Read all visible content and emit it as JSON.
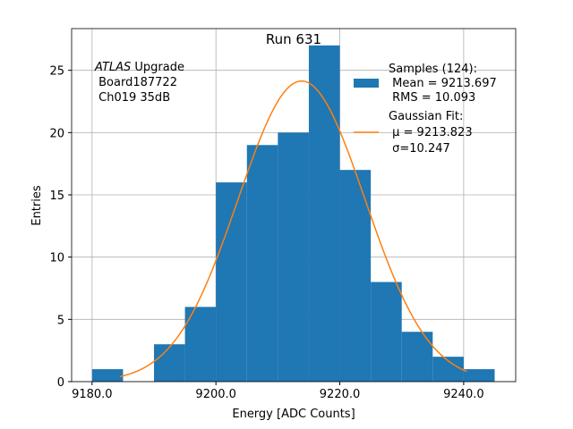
{
  "chart_data": {
    "type": "bar",
    "title": "Run 631",
    "xlabel": "Energy [ADC Counts]",
    "ylabel": "Entries",
    "xlim": [
      9176.7,
      9248.4
    ],
    "ylim": [
      0,
      28.35
    ],
    "grid": true,
    "legend_placement": "top-right",
    "bin_edges": [
      9180,
      9185,
      9190,
      9195,
      9200,
      9205,
      9210,
      9215,
      9220,
      9225,
      9230,
      9235,
      9240,
      9245
    ],
    "values": [
      1,
      0,
      3,
      6,
      16,
      19,
      20,
      27,
      17,
      8,
      4,
      2,
      1
    ],
    "xticks": [
      9180,
      9200,
      9220,
      9240
    ],
    "xtick_labels": [
      "9180.0",
      "9200.0",
      "9220.0",
      "9240.0"
    ],
    "yticks": [
      0,
      5,
      10,
      15,
      20,
      25
    ],
    "ytick_labels": [
      "0",
      "5",
      "10",
      "15",
      "20",
      "25"
    ],
    "fit": {
      "type": "gaussian",
      "mu": 9213.823,
      "sigma": 10.247,
      "entries": 124,
      "bin_width": 5,
      "x_range": [
        9184.5,
        9240.5
      ]
    },
    "colors": {
      "bars": "#1f77b4",
      "fit": "#ff7f0e"
    },
    "annotation": {
      "italic": "ATLAS",
      "line1_rest": " Upgrade",
      "line2": " Board187722",
      "line3": " Ch019 35dB"
    },
    "legend": [
      {
        "lines": [
          "Samples (124):",
          " Mean = 9213.697",
          " RMS = 10.093"
        ]
      },
      {
        "lines": [
          "Gaussian Fit:",
          " μ = 9213.823",
          " σ=10.247"
        ]
      }
    ]
  }
}
